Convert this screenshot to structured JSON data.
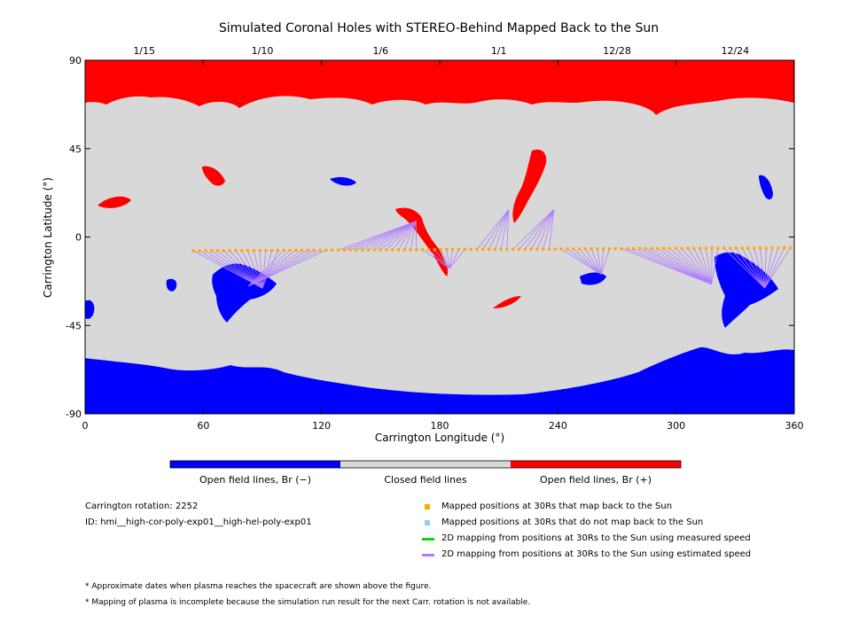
{
  "chart_data": {
    "type": "heatmap",
    "title": "Simulated Coronal Holes with STEREO-Behind Mapped Back to the Sun",
    "xlabel": "Carrington Longitude (°)",
    "ylabel": "Carrington Latitude (°)",
    "xlim": [
      0,
      360
    ],
    "ylim": [
      -90,
      90
    ],
    "x_ticks": [
      "0",
      "60",
      "120",
      "180",
      "240",
      "300",
      "360"
    ],
    "y_ticks": [
      "90",
      "45",
      "0",
      "-45",
      "-90"
    ],
    "top_axis_dates": [
      {
        "label": "1/15",
        "lon": 30
      },
      {
        "label": "1/10",
        "lon": 90
      },
      {
        "label": "1/6",
        "lon": 150
      },
      {
        "label": "1/1",
        "lon": 210
      },
      {
        "label": "12/28",
        "lon": 270
      },
      {
        "label": "12/24",
        "lon": 330
      }
    ],
    "colors": {
      "open_negative": "#0000ff",
      "closed": "#d8d8d8",
      "open_positive": "#ff0000",
      "mapped_points": "#ffa500",
      "unmapped_points": "#87cefa",
      "measured_speed_line": "#00e000",
      "estimated_speed_line": "#b07cff"
    },
    "colorbar": [
      {
        "label": "Open field lines, Br (−)",
        "color": "#0000ff"
      },
      {
        "label": "Closed field lines",
        "color": "#d8d8d8"
      },
      {
        "label": "Open field lines, Br (+)",
        "color": "#ff0000"
      }
    ],
    "mapped_positions": {
      "lon_start": 55,
      "lon_end": 358,
      "lat_start": -7,
      "lat_end": -5.5,
      "count": 100
    },
    "footpoint_mappings": [
      {
        "from_lon": [
          55,
          100
        ],
        "to_lon": 90,
        "to_lat": -26
      },
      {
        "from_lon": [
          100,
          125
        ],
        "to_lon": 83,
        "to_lat": -25
      },
      {
        "from_lon": [
          128,
          170
        ],
        "to_lon": 168,
        "to_lat": 8
      },
      {
        "from_lon": [
          170,
          195
        ],
        "to_lon": 185,
        "to_lat": -16
      },
      {
        "from_lon": [
          196,
          215
        ],
        "to_lon": 215,
        "to_lat": 14
      },
      {
        "from_lon": [
          215,
          238
        ],
        "to_lon": 238,
        "to_lat": 14
      },
      {
        "from_lon": [
          240,
          268
        ],
        "to_lon": 262,
        "to_lat": -19
      },
      {
        "from_lon": [
          272,
          322
        ],
        "to_lon": 318,
        "to_lat": -24
      },
      {
        "from_lon": [
          322,
          358
        ],
        "to_lon": 345,
        "to_lat": -26
      }
    ]
  },
  "info": {
    "rotation": "Carrington rotation: 2252",
    "run_id": "ID: hmi__high-cor-poly-exp01__high-hel-poly-exp01"
  },
  "legend": {
    "mapped": "Mapped positions at 30Rs that map back to the Sun",
    "unmapped": "Mapped positions at 30Rs that do not map back to the Sun",
    "measured": "2D mapping from positions at 30Rs to the Sun using measured speed",
    "estimated": "2D mapping from positions at 30Rs to the Sun using estimated speed"
  },
  "notes": {
    "note1": "* Approximate dates when plasma reaches the spacecraft are shown above the figure.",
    "note2": "* Mapping of plasma is incomplete because the simulation run result for the next Carr. rotation is not available."
  }
}
